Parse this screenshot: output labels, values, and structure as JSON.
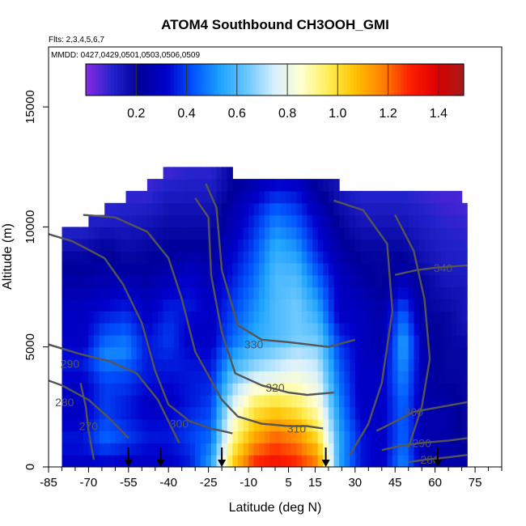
{
  "chart_data": {
    "type": "heatmap",
    "title": "ATOM4 Southbound CH3OOH_GMI",
    "flights_note": "Flts: 2,3,4,5,6,7",
    "dates_note": "MMDD: 0427,0429,0501,0503,0506,0509",
    "xlabel": "Latitude (deg N)",
    "ylabel": "Altitude (m)",
    "xlim": [
      -85,
      85
    ],
    "ylim": [
      0,
      17500
    ],
    "x_ticks": [
      -85,
      -70,
      -55,
      -40,
      -25,
      -10,
      5,
      15,
      30,
      45,
      60,
      75
    ],
    "x_ticks_unlabeled": [
      -80,
      -75,
      -65,
      -60,
      -50,
      -45,
      -35,
      -30,
      -20,
      -15,
      -5,
      0,
      10,
      20,
      25,
      35,
      40,
      50,
      55,
      65,
      70,
      80,
      85
    ],
    "y_ticks": [
      0,
      5000,
      10000,
      15000
    ],
    "colorbar": {
      "min": 0.0,
      "max": 1.5,
      "ticks": [
        0.2,
        0.4,
        0.6,
        0.8,
        1.0,
        1.2,
        1.4
      ],
      "colors": [
        "#8a2be2",
        "#2222cc",
        "#000099",
        "#0000cc",
        "#0055ff",
        "#1fa3ff",
        "#6cc8ff",
        "#d8f0ff",
        "#ffffd0",
        "#ffee55",
        "#ffc000",
        "#ff8000",
        "#ff2000",
        "#dd0000",
        "#a51a1a"
      ]
    },
    "column_profiles": [
      {
        "lat": -72,
        "top": 9800,
        "vals": [
          0.3,
          0.35,
          0.3,
          0.3,
          0.35,
          0.3,
          0.3,
          0.25,
          0.2,
          0.12
        ]
      },
      {
        "lat": -64,
        "top": 10500,
        "vals": [
          0.3,
          0.45,
          0.4,
          0.4,
          0.5,
          0.4,
          0.3,
          0.25,
          0.2,
          0.1
        ]
      },
      {
        "lat": -56,
        "top": 11000,
        "vals": [
          0.3,
          0.4,
          0.35,
          0.4,
          0.5,
          0.4,
          0.3,
          0.2,
          0.15,
          0.1
        ]
      },
      {
        "lat": -48,
        "top": 11500,
        "vals": [
          0.3,
          0.35,
          0.3,
          0.35,
          0.35,
          0.3,
          0.25,
          0.2,
          0.15,
          0.08
        ]
      },
      {
        "lat": -40,
        "top": 12300,
        "vals": [
          0.3,
          0.35,
          0.3,
          0.35,
          0.4,
          0.35,
          0.25,
          0.2,
          0.15,
          0.08
        ]
      },
      {
        "lat": -32,
        "top": 12300,
        "vals": [
          0.35,
          0.4,
          0.35,
          0.35,
          0.3,
          0.35,
          0.3,
          0.2,
          0.15,
          0.1
        ]
      },
      {
        "lat": -24,
        "top": 12300,
        "vals": [
          0.55,
          0.45,
          0.4,
          0.35,
          0.3,
          0.3,
          0.25,
          0.2,
          0.15,
          0.1
        ]
      },
      {
        "lat": -16,
        "top": 12000,
        "vals": [
          1.05,
          0.9,
          0.75,
          0.6,
          0.45,
          0.4,
          0.35,
          0.3,
          0.25,
          0.2
        ]
      },
      {
        "lat": -8,
        "top": 12000,
        "vals": [
          1.3,
          1.1,
          0.95,
          0.7,
          0.55,
          0.5,
          0.45,
          0.4,
          0.35,
          0.25
        ]
      },
      {
        "lat": 0,
        "top": 12000,
        "vals": [
          1.35,
          1.2,
          1.0,
          0.75,
          0.6,
          0.6,
          0.6,
          0.55,
          0.45,
          0.3
        ]
      },
      {
        "lat": 8,
        "top": 12000,
        "vals": [
          1.3,
          1.15,
          0.95,
          0.8,
          0.65,
          0.65,
          0.6,
          0.5,
          0.4,
          0.3
        ]
      },
      {
        "lat": 16,
        "top": 11800,
        "vals": [
          1.2,
          1.0,
          0.85,
          0.75,
          0.65,
          0.55,
          0.45,
          0.35,
          0.3,
          0.2
        ]
      },
      {
        "lat": 24,
        "top": 11500,
        "vals": [
          0.55,
          0.55,
          0.5,
          0.45,
          0.4,
          0.3,
          0.3,
          0.25,
          0.2,
          0.15
        ]
      },
      {
        "lat": 32,
        "top": 11500,
        "vals": [
          0.35,
          0.35,
          0.3,
          0.3,
          0.3,
          0.3,
          0.25,
          0.2,
          0.15,
          0.1
        ]
      },
      {
        "lat": 40,
        "top": 11500,
        "vals": [
          0.3,
          0.3,
          0.3,
          0.3,
          0.25,
          0.25,
          0.2,
          0.2,
          0.15,
          0.1
        ]
      },
      {
        "lat": 48,
        "top": 11500,
        "vals": [
          0.5,
          0.45,
          0.45,
          0.5,
          0.55,
          0.45,
          0.3,
          0.2,
          0.15,
          0.1
        ]
      },
      {
        "lat": 56,
        "top": 11500,
        "vals": [
          0.25,
          0.25,
          0.25,
          0.25,
          0.25,
          0.2,
          0.2,
          0.15,
          0.12,
          0.08
        ]
      },
      {
        "lat": 64,
        "top": 11300,
        "vals": [
          0.25,
          0.25,
          0.25,
          0.2,
          0.2,
          0.2,
          0.15,
          0.12,
          0.1,
          0.07
        ]
      },
      {
        "lat": 71,
        "top": 11000,
        "vals": [
          0.25,
          0.2,
          0.2,
          0.2,
          0.2,
          0.15,
          0.15,
          0.12,
          0.1,
          0.07
        ]
      }
    ],
    "contours": [
      {
        "label": "270",
        "label_at": [
          -70,
          1700
        ],
        "points": [
          [
            -68,
            300
          ],
          [
            -70,
            1500
          ],
          [
            -71,
            2500
          ],
          [
            -73,
            3500
          ]
        ]
      },
      {
        "label": "280",
        "label_at": [
          -79,
          2700
        ],
        "points": [
          [
            -55,
            1200
          ],
          [
            -62,
            2000
          ],
          [
            -70,
            2800
          ],
          [
            -80,
            3400
          ],
          [
            -85,
            3600
          ]
        ]
      },
      {
        "label": "290",
        "label_at": [
          -77,
          4300
        ],
        "points": [
          [
            -36,
            1000
          ],
          [
            -44,
            2800
          ],
          [
            -52,
            3900
          ],
          [
            -62,
            4400
          ],
          [
            -73,
            4700
          ],
          [
            -85,
            5100
          ]
        ]
      },
      {
        "label": "300",
        "label_at": [
          -36,
          1800
        ],
        "points": [
          [
            -16,
            1400
          ],
          [
            -24,
            1600
          ],
          [
            -32,
            1900
          ],
          [
            -40,
            2600
          ],
          [
            -45,
            4000
          ],
          [
            -50,
            6000
          ],
          [
            -57,
            7600
          ],
          [
            -64,
            8700
          ],
          [
            -76,
            9400
          ],
          [
            -85,
            9700
          ]
        ]
      },
      {
        "label": "310",
        "label_at": [
          8,
          1600
        ],
        "points": [
          [
            18,
            1600
          ],
          [
            12,
            1700
          ],
          [
            5,
            1700
          ],
          [
            -5,
            1800
          ],
          [
            -14,
            2100
          ],
          [
            -20,
            2800
          ],
          [
            -30,
            4800
          ],
          [
            -35,
            7000
          ],
          [
            -40,
            8700
          ],
          [
            -48,
            9800
          ],
          [
            -60,
            10400
          ],
          [
            -72,
            10500
          ]
        ]
      },
      {
        "label": "320",
        "label_at": [
          0,
          3300
        ],
        "points": [
          [
            22,
            3100
          ],
          [
            12,
            3000
          ],
          [
            5,
            3100
          ],
          [
            -5,
            3400
          ],
          [
            -15,
            3900
          ],
          [
            -20,
            5600
          ],
          [
            -24,
            8000
          ],
          [
            -25,
            10400
          ],
          [
            -30,
            11200
          ]
        ]
      },
      {
        "label": "330",
        "label_at": [
          -8,
          5100
        ],
        "points": [
          [
            30,
            5300
          ],
          [
            20,
            5000
          ],
          [
            5,
            5200
          ],
          [
            -5,
            5300
          ],
          [
            -14,
            5900
          ],
          [
            -20,
            8200
          ],
          [
            -22,
            10800
          ],
          [
            -26,
            11800
          ]
        ]
      },
      {
        "label": "340",
        "label_at": [
          63,
          8300
        ],
        "points": [
          [
            45,
            8000
          ],
          [
            53,
            8200
          ],
          [
            60,
            8300
          ],
          [
            72,
            8400
          ]
        ]
      },
      {
        "label": "",
        "label_at": null,
        "points": [
          [
            28,
            500
          ],
          [
            35,
            1800
          ],
          [
            40,
            3500
          ],
          [
            44,
            6500
          ],
          [
            42,
            9300
          ],
          [
            33,
            10700
          ],
          [
            22,
            11100
          ]
        ]
      },
      {
        "label": "",
        "label_at": null,
        "points": [
          [
            50,
            800
          ],
          [
            55,
            2500
          ],
          [
            58,
            4500
          ],
          [
            56,
            7000
          ],
          [
            52,
            9000
          ],
          [
            45,
            10500
          ]
        ]
      },
      {
        "label": "300",
        "label_at": [
          52,
          2300
        ],
        "points": [
          [
            38,
            1500
          ],
          [
            47,
            2000
          ],
          [
            52,
            2300
          ],
          [
            62,
            2500
          ],
          [
            72,
            2700
          ]
        ]
      },
      {
        "label": "290",
        "label_at": [
          55,
          1000
        ],
        "points": [
          [
            40,
            700
          ],
          [
            48,
            900
          ],
          [
            55,
            1000
          ],
          [
            65,
            1100
          ],
          [
            72,
            1200
          ]
        ]
      },
      {
        "label": "280",
        "label_at": [
          58,
          300
        ],
        "points": [
          [
            50,
            200
          ],
          [
            56,
            300
          ],
          [
            65,
            400
          ],
          [
            72,
            500
          ]
        ]
      }
    ],
    "flight_markers": [
      -55,
      -43,
      -20,
      19,
      61
    ]
  }
}
